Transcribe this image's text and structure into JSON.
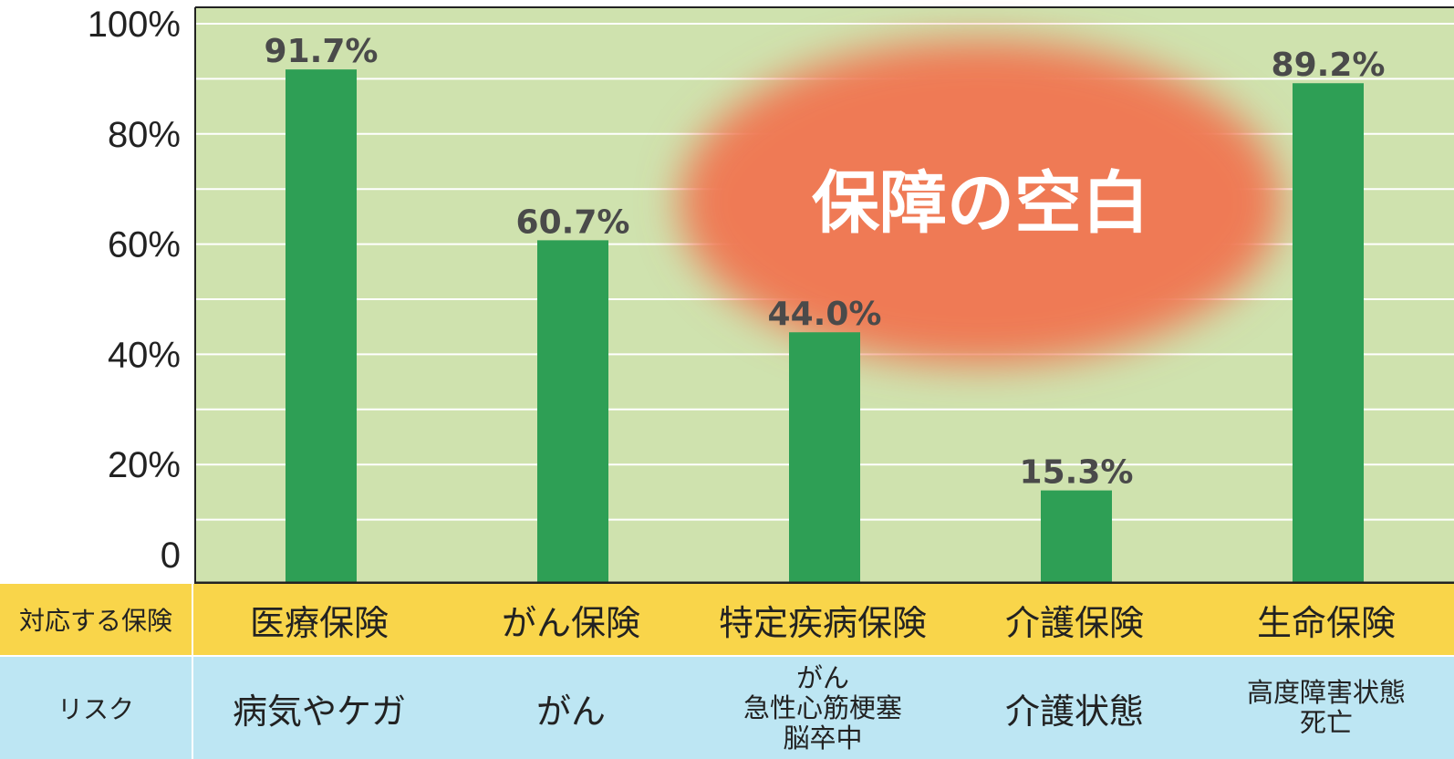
{
  "chart_data": {
    "type": "bar",
    "categories": [
      "医療保険",
      "がん保険",
      "特定疾病保険",
      "介護保険",
      "生命保険"
    ],
    "values": [
      91.7,
      60.7,
      44.0,
      15.3,
      89.2
    ],
    "value_labels": [
      "91.7%",
      "60.7%",
      "44.0%",
      "15.3%",
      "89.2%"
    ],
    "ylim": [
      0,
      100
    ],
    "y_ticks": [
      {
        "value": 0,
        "label": "0"
      },
      {
        "value": 20,
        "label": "20%"
      },
      {
        "value": 40,
        "label": "40%"
      },
      {
        "value": 60,
        "label": "60%"
      },
      {
        "value": 80,
        "label": "80%"
      },
      {
        "value": 100,
        "label": "100%"
      }
    ],
    "grid": true,
    "annotation": "保障の空白",
    "colors": {
      "bar": "#2e9f55",
      "plot_background": "#cfe2ae",
      "gridline": "#ffffff",
      "annotation_fill": "#ef7a54"
    }
  },
  "table": {
    "insurance_header": "対応する保険",
    "risk_header": "リスク",
    "insurance": [
      "医療保険",
      "がん保険",
      "特定疾病保険",
      "介護保険",
      "生命保険"
    ],
    "risks": [
      "病気やケガ",
      "がん",
      "がん\n急性心筋梗塞\n脳卒中",
      "介護状態",
      "高度障害状態\n死亡"
    ]
  }
}
